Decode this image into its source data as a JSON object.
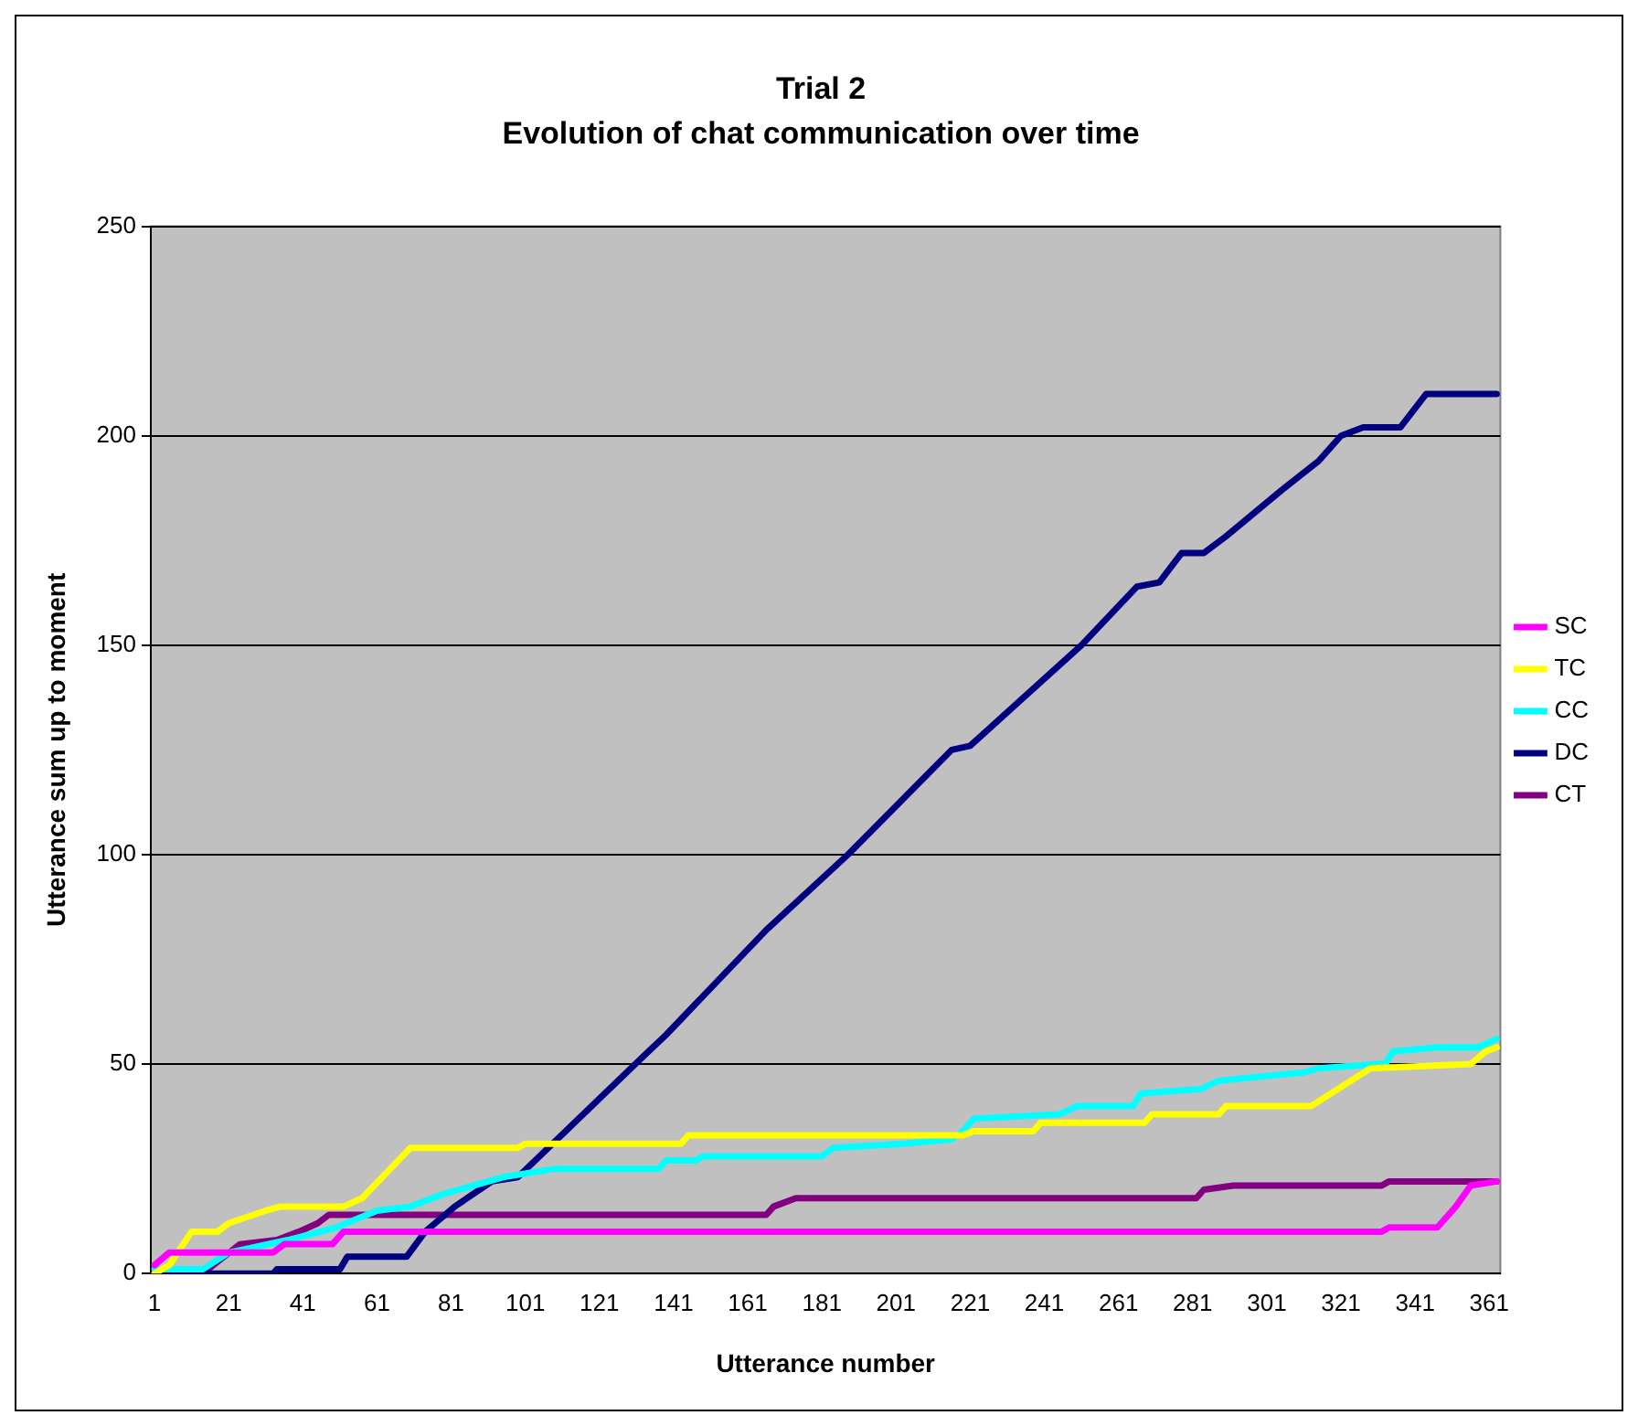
{
  "chart_data": {
    "type": "line",
    "title": "Trial 2",
    "subtitle": "Evolution of chat communication over time",
    "xlabel": "Utterance number",
    "ylabel": "Utterance sum up to moment",
    "xlim": [
      0,
      364
    ],
    "xticks": [
      1,
      21,
      41,
      61,
      81,
      101,
      121,
      141,
      161,
      181,
      201,
      221,
      241,
      261,
      281,
      301,
      321,
      341,
      361
    ],
    "ylim": [
      0,
      250
    ],
    "yticks": [
      0,
      50,
      100,
      150,
      200,
      250
    ],
    "grid": "y",
    "legend": "right",
    "marker": "none",
    "line_style": "solid",
    "series": [
      {
        "name": "SC",
        "color": "#ff00ff",
        "x": [
          1,
          5,
          33,
          36,
          49,
          52,
          332,
          334,
          347,
          352,
          356,
          363
        ],
        "values": [
          2,
          5,
          5,
          7,
          7,
          10,
          10,
          11,
          11,
          16,
          21,
          22
        ]
      },
      {
        "name": "TC",
        "color": "#ffff00",
        "x": [
          1,
          5,
          11,
          18,
          21,
          31,
          35,
          52,
          57,
          70,
          99,
          101,
          143,
          145,
          219,
          222,
          238,
          240,
          268,
          270,
          288,
          290,
          313,
          329,
          356,
          360,
          363
        ],
        "values": [
          0,
          2,
          10,
          10,
          12,
          15,
          16,
          16,
          18,
          30,
          30,
          31,
          31,
          33,
          33,
          34,
          34,
          36,
          36,
          38,
          38,
          40,
          40,
          49,
          50,
          53,
          54
        ]
      },
      {
        "name": "CC",
        "color": "#00ffff",
        "x": [
          1,
          14,
          21,
          37,
          50,
          61,
          70,
          79,
          95,
          109,
          137,
          139,
          147,
          149,
          181,
          184,
          203,
          216,
          219,
          222,
          245,
          250,
          265,
          267,
          283,
          288,
          299,
          311,
          315,
          331,
          333,
          335,
          347,
          358,
          363
        ],
        "values": [
          1,
          1,
          5,
          8,
          11,
          15,
          16,
          19,
          23,
          25,
          25,
          27,
          27,
          28,
          28,
          30,
          31,
          32,
          34,
          37,
          38,
          40,
          40,
          43,
          44,
          46,
          47,
          48,
          49,
          50,
          50,
          53,
          54,
          54,
          56
        ]
      },
      {
        "name": "DC",
        "color": "#000080",
        "x": [
          1,
          33,
          34,
          51,
          53,
          69,
          74,
          82,
          92,
          99,
          133,
          139,
          166,
          188,
          216,
          221,
          251,
          266,
          272,
          278,
          284,
          290,
          305,
          315,
          321,
          327,
          337,
          344,
          363
        ],
        "values": [
          0,
          0,
          1,
          1,
          4,
          4,
          10,
          16,
          22,
          23,
          52,
          57,
          82,
          100,
          125,
          126,
          150,
          164,
          165,
          172,
          172,
          176,
          187,
          194,
          200,
          202,
          202,
          210,
          210
        ]
      },
      {
        "name": "CT",
        "color": "#800080",
        "x": [
          1,
          14,
          24,
          34,
          40,
          45,
          48,
          166,
          168,
          174,
          282,
          284,
          292,
          332,
          334,
          363
        ],
        "values": [
          0,
          0,
          7,
          8,
          10,
          12,
          14,
          14,
          16,
          18,
          18,
          20,
          21,
          21,
          22,
          22
        ]
      }
    ]
  }
}
